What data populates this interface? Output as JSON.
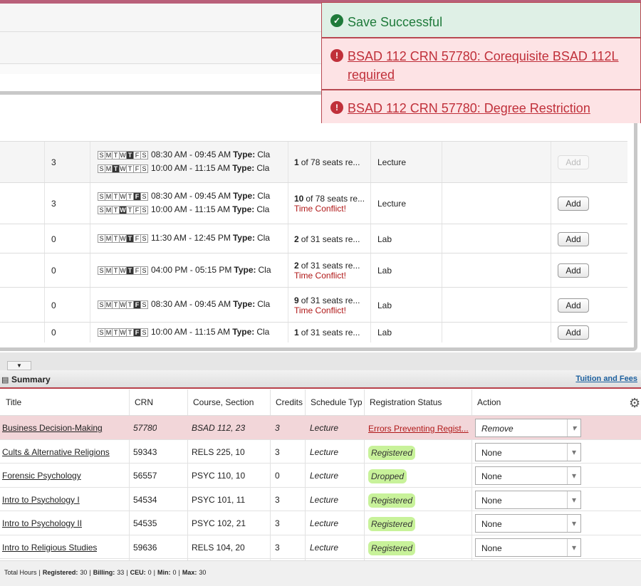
{
  "notifications": [
    {
      "kind": "success",
      "text": "Save Successful"
    },
    {
      "kind": "error",
      "text": "BSAD 112 CRN 57780: Corequisite BSAD 112L required"
    },
    {
      "kind": "error",
      "text": "BSAD 112 CRN 57780: Degree Restriction"
    }
  ],
  "sections": {
    "days": [
      "S",
      "M",
      "T",
      "W",
      "T",
      "F",
      "S"
    ],
    "type_label": "Type:",
    "type_value": "Cla",
    "rows": [
      {
        "credits": "3",
        "meetings": [
          {
            "day": 4,
            "time": "08:30 AM - 09:45 AM"
          },
          {
            "day": 2,
            "time": "10:00 AM - 11:15 AM"
          }
        ],
        "seats_count": "1",
        "seats_text": "of 78 seats re...",
        "schedule_type": "Lecture",
        "action": "Add",
        "disabled": true
      },
      {
        "credits": "3",
        "meetings": [
          {
            "day": 5,
            "time": "08:30 AM - 09:45 AM"
          },
          {
            "day": 3,
            "time": "10:00 AM - 11:15 AM"
          }
        ],
        "seats_count": "10",
        "seats_text": "of 78 seats re...",
        "conflict": "Time Conflict!",
        "schedule_type": "Lecture",
        "action": "Add"
      },
      {
        "credits": "0",
        "meetings": [
          {
            "day": 4,
            "time": "11:30 AM - 12:45 PM"
          }
        ],
        "seats_count": "2",
        "seats_text": "of 31 seats re...",
        "schedule_type": "Lab",
        "action": "Add"
      },
      {
        "credits": "0",
        "meetings": [
          {
            "day": 4,
            "time": "04:00 PM - 05:15 PM"
          }
        ],
        "seats_count": "2",
        "seats_text": "of 31 seats re...",
        "conflict": "Time Conflict!",
        "schedule_type": "Lab",
        "action": "Add"
      },
      {
        "credits": "0",
        "meetings": [
          {
            "day": 5,
            "time": "08:30 AM - 09:45 AM"
          }
        ],
        "seats_count": "9",
        "seats_text": "of 31 seats re...",
        "conflict": "Time Conflict!",
        "schedule_type": "Lab",
        "action": "Add"
      },
      {
        "credits": "0",
        "meetings": [
          {
            "day": 5,
            "time": "10:00 AM - 11:15 AM"
          }
        ],
        "seats_count": "1",
        "seats_text": "of 31 seats re...",
        "schedule_type": "Lab",
        "action": "Add"
      }
    ]
  },
  "summary": {
    "title": "Summary",
    "link": "Tuition and Fees",
    "columns": [
      "Title",
      "CRN",
      "Course, Section",
      "Credits",
      "Schedule Type",
      "Registration Status",
      "Action"
    ],
    "rows": [
      {
        "title": "Business Decision-Making",
        "crn": "57780",
        "course": "BSAD 112, 23",
        "credits": "3",
        "schedule_type": "Lecture",
        "status": "Errors Preventing Regist...",
        "action": "Remove",
        "error": true
      },
      {
        "title": "Cults & Alternative Religions",
        "crn": "59343",
        "course": "RELS 225, 10",
        "credits": "3",
        "schedule_type": "Lecture",
        "status": "Registered",
        "action": "None"
      },
      {
        "title": "Forensic Psychology",
        "crn": "56557",
        "course": "PSYC 110, 10",
        "credits": "0",
        "schedule_type": "Lecture",
        "status": "Dropped",
        "action": "None"
      },
      {
        "title": "Intro to Psychology I",
        "crn": "54534",
        "course": "PSYC 101, 11",
        "credits": "3",
        "schedule_type": "Lecture",
        "status": "Registered",
        "action": "None"
      },
      {
        "title": "Intro to Psychology II",
        "crn": "54535",
        "course": "PSYC 102, 21",
        "credits": "3",
        "schedule_type": "Lecture",
        "status": "Registered",
        "action": "None"
      },
      {
        "title": "Intro to Religious Studies",
        "crn": "59636",
        "course": "RELS 104, 20",
        "credits": "3",
        "schedule_type": "Lecture",
        "status": "Registered",
        "action": "None"
      }
    ],
    "footer": {
      "prefix": "Total Hours",
      "items": [
        {
          "label": "Registered:",
          "value": "30"
        },
        {
          "label": "Billing:",
          "value": "33"
        },
        {
          "label": "CEU:",
          "value": "0"
        },
        {
          "label": "Min:",
          "value": "0"
        },
        {
          "label": "Max:",
          "value": "30"
        }
      ]
    }
  }
}
